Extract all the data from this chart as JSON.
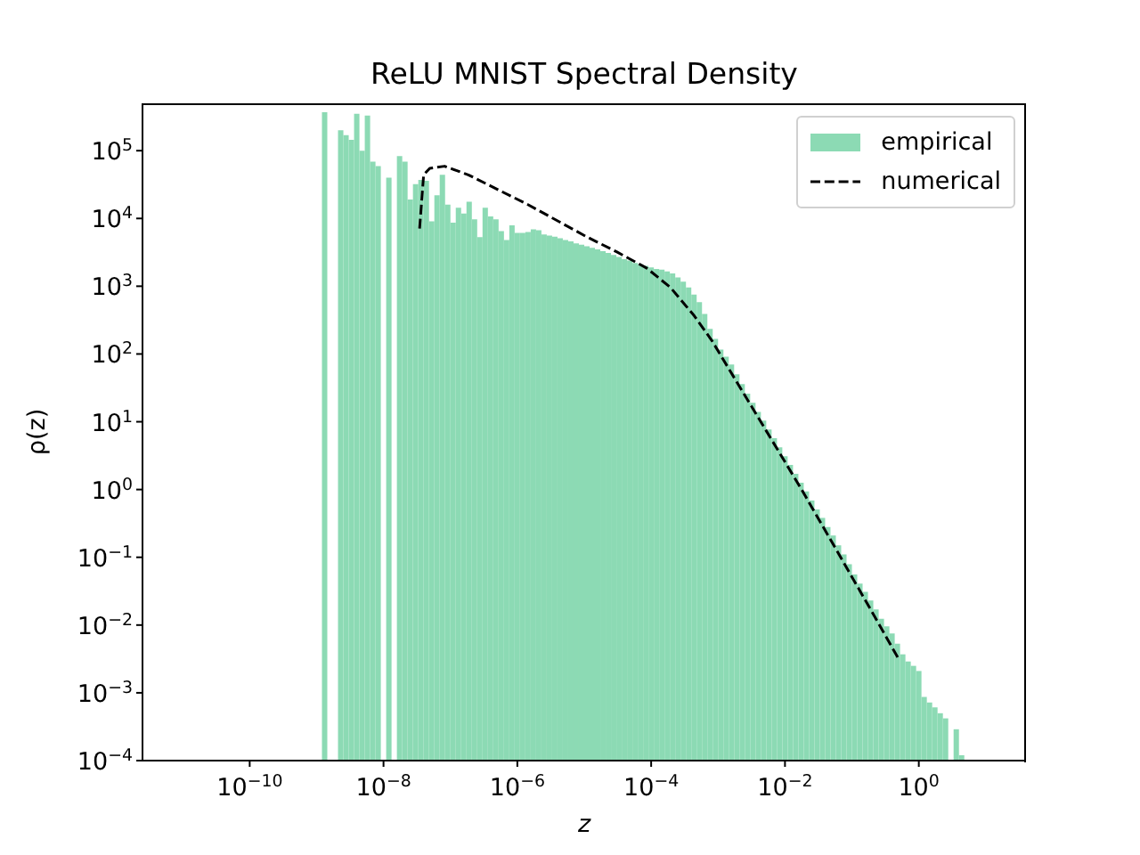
{
  "chart_data": {
    "type": "histogram",
    "title": "ReLU MNIST Spectral Density",
    "xlabel": "z",
    "ylabel": "ρ(z)",
    "log": "xy",
    "legend": "top right",
    "xlim": [
      2.5e-12,
      40
    ],
    "ylim": [
      0.0001,
      500000.0
    ],
    "xticks": [
      {
        "value": 1e-10,
        "label": "10$^{−10}$"
      },
      {
        "value": 1e-08,
        "label": "10$^{−8}$"
      },
      {
        "value": 1e-06,
        "label": "10$^{−6}$"
      },
      {
        "value": 0.0001,
        "label": "10$^{−4}$"
      },
      {
        "value": 0.01,
        "label": "10$^{−2}$"
      },
      {
        "value": 1,
        "label": "10$^{0}$"
      }
    ],
    "yticks": [
      {
        "value": 0.0001,
        "label": "10$^{−4}$"
      },
      {
        "value": 0.001,
        "label": "10$^{−3}$"
      },
      {
        "value": 0.01,
        "label": "10$^{−2}$"
      },
      {
        "value": 0.1,
        "label": "10$^{−1}$"
      },
      {
        "value": 1,
        "label": "10$^{0}$"
      },
      {
        "value": 10,
        "label": "10$^{1}$"
      },
      {
        "value": 100,
        "label": "10$^{2}$"
      },
      {
        "value": 1000,
        "label": "10$^{3}$"
      },
      {
        "value": 10000,
        "label": "10$^{4}$"
      },
      {
        "value": 100000,
        "label": "10$^{5}$"
      }
    ],
    "series": [
      {
        "name": "empirical",
        "type": "histogram",
        "color": "#8cdab4",
        "bins": [
          2.291e-10,
          2.754e-10,
          3.311e-10,
          3.981e-10,
          4.786e-10,
          5.754e-10,
          6.918e-10,
          8.318e-10,
          1e-09,
          1.202e-09,
          1.445e-09,
          1.738e-09,
          2.089e-09,
          2.512e-09,
          3.02e-09,
          3.631e-09,
          4.365e-09,
          5.248e-09,
          6.31e-09,
          7.586e-09,
          9.12e-09,
          1.096e-08,
          1.318e-08,
          1.585e-08,
          1.905e-08,
          2.291e-08,
          2.754e-08,
          3.311e-08,
          3.981e-08,
          4.786e-08,
          5.754e-08,
          6.918e-08,
          8.318e-08,
          1e-07,
          1.202e-07,
          1.445e-07,
          1.738e-07,
          2.089e-07,
          2.512e-07,
          3.02e-07,
          3.631e-07,
          4.365e-07,
          5.248e-07,
          6.31e-07,
          7.586e-07,
          9.12e-07,
          1.096e-06,
          1.318e-06,
          1.585e-06,
          1.905e-06,
          2.291e-06,
          2.754e-06,
          3.311e-06,
          3.981e-06,
          4.786e-06,
          5.754e-06,
          6.918e-06,
          8.318e-06,
          1e-05,
          1.202e-05,
          1.445e-05,
          1.738e-05,
          2.089e-05,
          2.512e-05,
          3.02e-05,
          3.631e-05,
          4.365e-05,
          5.248e-05,
          6.31e-05,
          7.586e-05,
          9.12e-05,
          0.0001096,
          0.0001318,
          0.0001585,
          0.0001905,
          0.0002291,
          0.0002754,
          0.0003311,
          0.0003981,
          0.0004786,
          0.0005754,
          0.0006918,
          0.0008318,
          0.001,
          0.001202,
          0.001445,
          0.001738,
          0.002089,
          0.002512,
          0.00302,
          0.003631,
          0.004365,
          0.005248,
          0.00631,
          0.007586,
          0.00912,
          0.01096,
          0.01318,
          0.01585,
          0.01905,
          0.02291,
          0.02754,
          0.03311,
          0.03981,
          0.04786,
          0.05754,
          0.06918,
          0.08318,
          0.1,
          0.1202,
          0.1445,
          0.1738,
          0.2089,
          0.2512,
          0.302,
          0.3631,
          0.4365,
          0.5248,
          0.631,
          0.7586,
          0.912,
          1.096,
          1.318,
          1.585,
          1.905,
          2.291,
          2.754,
          3.311,
          3.981,
          4.786
        ],
        "values": [
          null,
          null,
          null,
          null,
          null,
          null,
          null,
          null,
          null,
          370000.0,
          null,
          null,
          200000.0,
          170000.0,
          145000.0,
          350000.0,
          100000.0,
          330000.0,
          69000.0,
          59000.0,
          null,
          40000.0,
          null,
          83000.0,
          69000.0,
          19000.0,
          32000.0,
          37000.0,
          36000.0,
          9100.0,
          22000.0,
          44000.0,
          16000.0,
          8700.0,
          14400.0,
          11800.0,
          17700.0,
          9700.0,
          5300.0,
          14400.0,
          10700.0,
          9700.0,
          6500.0,
          4800.0,
          7900.0,
          6100.0,
          6100.0,
          6300.0,
          6900.0,
          6700.0,
          5800.0,
          5600.0,
          5400.0,
          5100.0,
          4800.0,
          4600.0,
          4300.0,
          4100.0,
          3900.0,
          3700.0,
          3500.0,
          3300.0,
          3100.0,
          2900.0,
          2700.0,
          2500.0,
          2400.0,
          2200.0,
          2100.0,
          2000.0,
          1900.0,
          1800.0,
          1750.0,
          1650.0,
          1550.0,
          1350.0,
          1170.0,
          960,
          750,
          580,
          390,
          235,
          167,
          116,
          91,
          70,
          50,
          36,
          26,
          19,
          14,
          10.4,
          7.7,
          5.7,
          4.2,
          3.1,
          2.3,
          1.7,
          1.26,
          0.94,
          0.69,
          0.51,
          0.38,
          0.28,
          0.21,
          0.15,
          0.11,
          0.079,
          0.056,
          0.041,
          0.031,
          0.023,
          0.017,
          0.0124,
          0.0096,
          0.0075,
          0.0053,
          0.0037,
          0.0029,
          0.0025,
          0.0021,
          0.00087,
          0.00072,
          0.00061,
          0.0005,
          0.00042,
          null,
          0.00029,
          0.00012
        ]
      },
      {
        "name": "numerical",
        "type": "line",
        "color": "#000000",
        "line_style": "dashed",
        "marker": "none",
        "x": [
          3.46e-08,
          3.98e-08,
          4.91e-08,
          8.17e-08,
          1.85e-07,
          1.44e-06,
          1.11e-05,
          3.08e-05,
          8.5e-05,
          0.000194,
          0.00044,
          0.00081,
          0.0015,
          0.0051,
          0.0174,
          0.0594,
          0.203,
          0.509
        ],
        "values": [
          7100.0,
          44000.0,
          55000.0,
          59000.0,
          44000.0,
          16000.0,
          5300.0,
          3200.0,
          1860.0,
          960,
          366,
          157,
          57,
          7.7,
          1.03,
          0.126,
          0.0152,
          0.00305
        ]
      }
    ]
  }
}
